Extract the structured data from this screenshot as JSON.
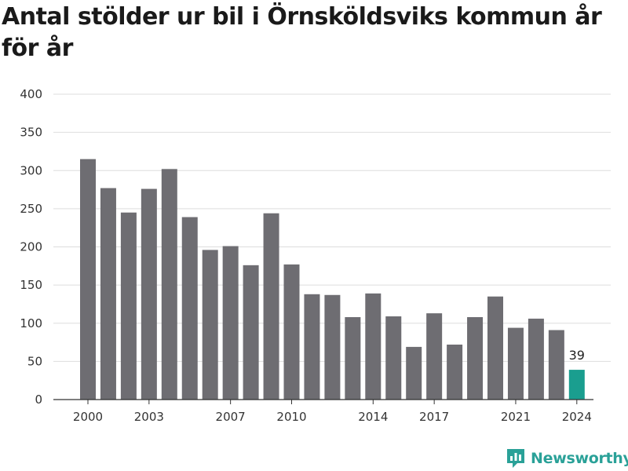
{
  "title": "Antal stölder ur bil i Örnsköldsviks kommun år för år",
  "brand": {
    "name": "Newsworthy",
    "color": "#2aa198"
  },
  "colors": {
    "bar": "#6e6d72",
    "highlight": "#1a9e8f",
    "grid": "#dddddd",
    "axis": "#333333"
  },
  "chart_data": {
    "type": "bar",
    "title": "Antal stölder ur bil i Örnsköldsviks kommun år för år",
    "xlabel": "",
    "ylabel": "",
    "categories": [
      2000,
      2001,
      2002,
      2003,
      2004,
      2005,
      2006,
      2007,
      2008,
      2009,
      2010,
      2011,
      2012,
      2013,
      2014,
      2015,
      2016,
      2017,
      2018,
      2019,
      2020,
      2021,
      2022,
      2023,
      2024
    ],
    "values": [
      315,
      277,
      245,
      276,
      302,
      239,
      196,
      201,
      176,
      244,
      177,
      138,
      137,
      108,
      139,
      109,
      69,
      113,
      72,
      108,
      135,
      94,
      106,
      91,
      39
    ],
    "x_tick_labels": [
      "2000",
      "2003",
      "2007",
      "2010",
      "2014",
      "2017",
      "2021",
      "2024"
    ],
    "y_ticks": [
      0,
      50,
      100,
      150,
      200,
      250,
      300,
      350,
      400
    ],
    "ylim": [
      0,
      400
    ],
    "grid": true,
    "highlight": {
      "category": 2024,
      "label": "39"
    }
  }
}
